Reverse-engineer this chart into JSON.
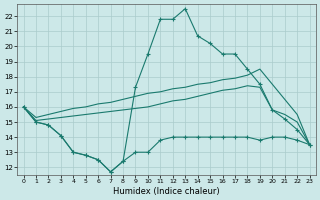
{
  "background_color": "#cce8e8",
  "grid_color": "#aacccc",
  "line_color": "#1a7a6e",
  "xlim": [
    -0.5,
    23.5
  ],
  "ylim": [
    11.5,
    22.8
  ],
  "xticks": [
    0,
    1,
    2,
    3,
    4,
    5,
    6,
    7,
    8,
    9,
    10,
    11,
    12,
    13,
    14,
    15,
    16,
    17,
    18,
    19,
    20,
    21,
    22,
    23
  ],
  "yticks": [
    12,
    13,
    14,
    15,
    16,
    17,
    18,
    19,
    20,
    21,
    22
  ],
  "xlabel": "Humidex (Indice chaleur)",
  "curve1_x": [
    0,
    1,
    2,
    3,
    4,
    5,
    6,
    7,
    8,
    9,
    10,
    11,
    12,
    13,
    14,
    15,
    16,
    17,
    18,
    19,
    20,
    21,
    22,
    23
  ],
  "curve1_y": [
    16.0,
    15.0,
    14.8,
    14.1,
    13.0,
    12.8,
    12.5,
    11.7,
    12.4,
    17.3,
    19.5,
    21.8,
    21.8,
    22.5,
    20.7,
    20.2,
    19.5,
    19.5,
    18.5,
    17.5,
    15.8,
    15.2,
    14.5,
    13.5
  ],
  "curve2_x": [
    0,
    1,
    2,
    3,
    4,
    5,
    6,
    7,
    8,
    9,
    10,
    11,
    12,
    13,
    14,
    15,
    16,
    17,
    18,
    19,
    20,
    21,
    22,
    23
  ],
  "curve2_y": [
    16.0,
    15.0,
    14.8,
    14.1,
    13.0,
    12.8,
    12.5,
    11.7,
    12.4,
    13.0,
    13.0,
    13.8,
    14.0,
    14.0,
    14.0,
    14.0,
    14.0,
    14.0,
    14.0,
    13.8,
    14.0,
    14.0,
    13.8,
    13.5
  ],
  "line3_x": [
    0,
    1,
    2,
    3,
    4,
    5,
    6,
    7,
    8,
    9,
    10,
    11,
    12,
    13,
    14,
    15,
    16,
    17,
    18,
    19,
    20,
    21,
    22,
    23
  ],
  "line3_y": [
    16.0,
    15.3,
    15.5,
    15.7,
    15.9,
    16.0,
    16.2,
    16.3,
    16.5,
    16.7,
    16.9,
    17.0,
    17.2,
    17.3,
    17.5,
    17.6,
    17.8,
    17.9,
    18.1,
    18.5,
    17.5,
    16.5,
    15.5,
    13.5
  ],
  "line4_x": [
    0,
    1,
    2,
    3,
    4,
    5,
    6,
    7,
    8,
    9,
    10,
    11,
    12,
    13,
    14,
    15,
    16,
    17,
    18,
    19,
    20,
    21,
    22,
    23
  ],
  "line4_y": [
    16.0,
    15.1,
    15.2,
    15.3,
    15.4,
    15.5,
    15.6,
    15.7,
    15.8,
    15.9,
    16.0,
    16.2,
    16.4,
    16.5,
    16.7,
    16.9,
    17.1,
    17.2,
    17.4,
    17.3,
    15.8,
    15.5,
    15.0,
    13.5
  ]
}
